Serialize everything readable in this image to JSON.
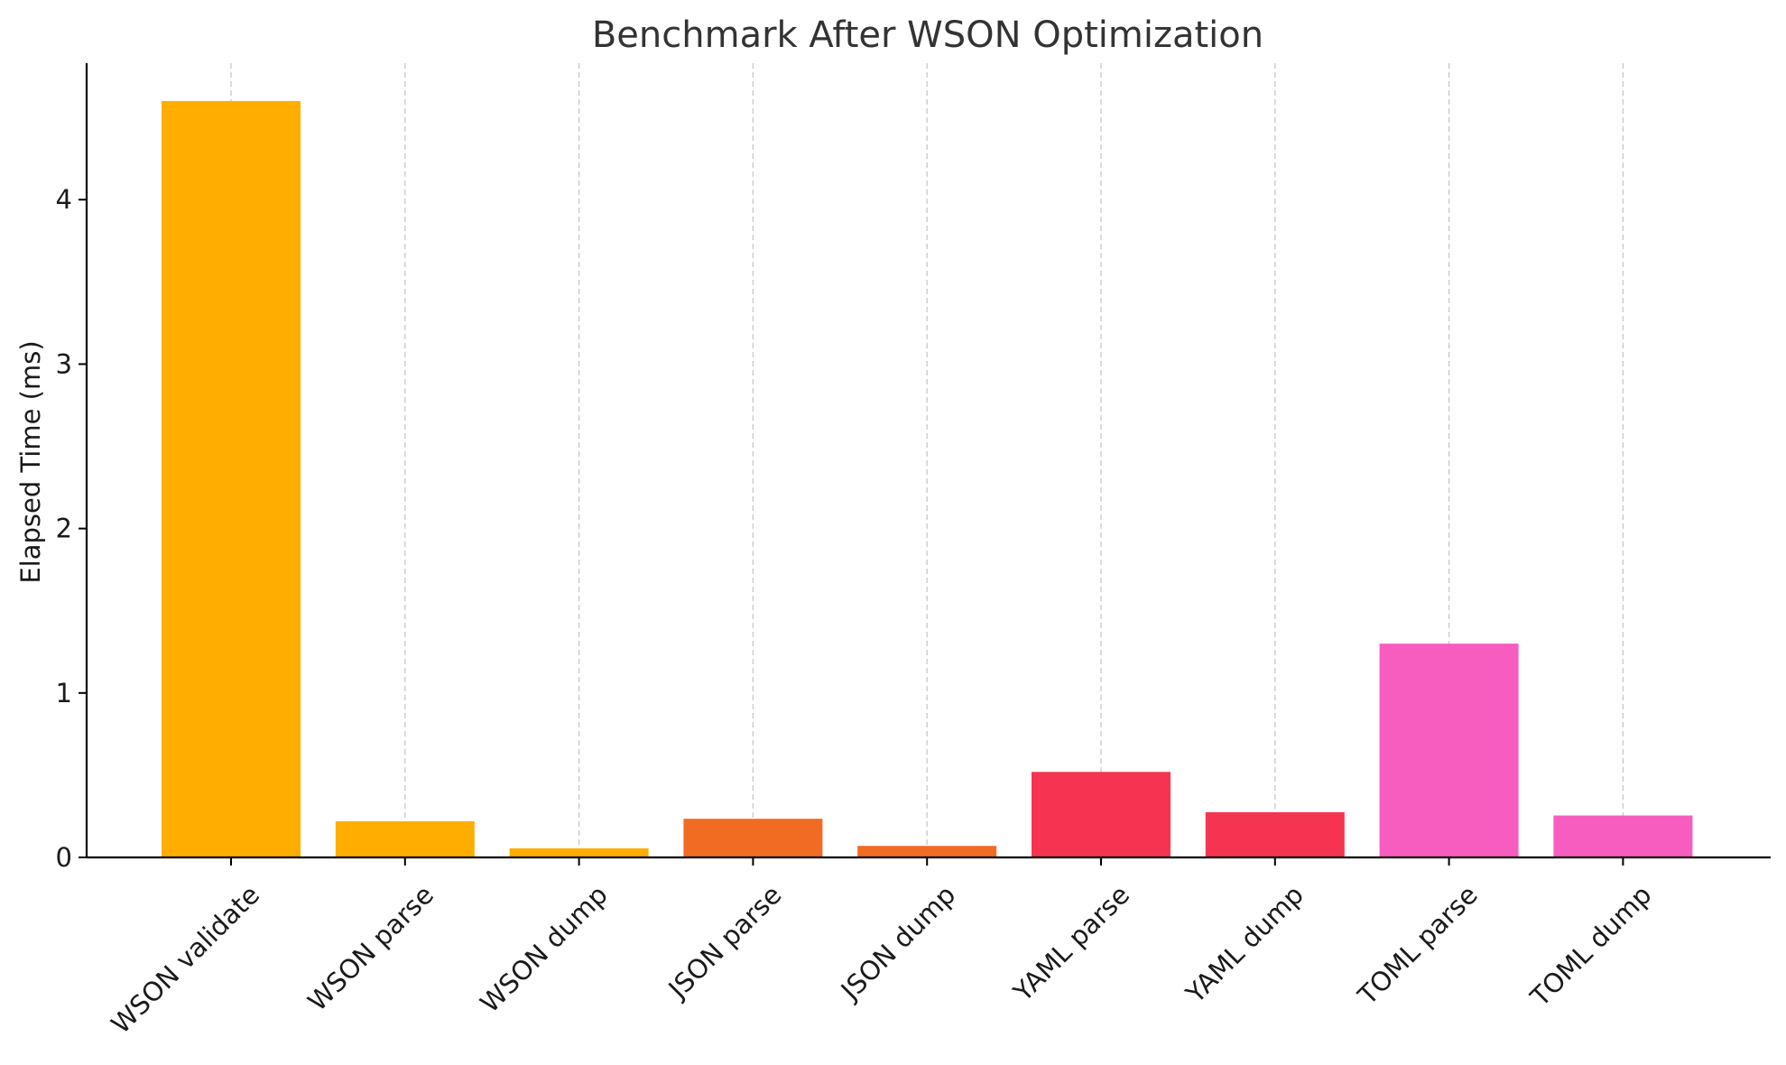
{
  "chart_data": {
    "type": "bar",
    "title": "Benchmark After WSON Optimization",
    "xlabel": "",
    "ylabel": "Elapsed Time (ms)",
    "ylim": [
      0,
      4.83
    ],
    "yticks": [
      0,
      1,
      2,
      3,
      4
    ],
    "grid": "vertical dashed at categories",
    "categories": [
      "WSON validate",
      "WSON parse",
      "WSON dump",
      "JSON parse",
      "JSON dump",
      "YAML parse",
      "YAML dump",
      "TOML parse",
      "TOML dump"
    ],
    "values": [
      4.6,
      0.22,
      0.055,
      0.235,
      0.07,
      0.52,
      0.275,
      1.3,
      0.255
    ],
    "colors": [
      "#FFAE00",
      "#FFAE00",
      "#FFAE00",
      "#F26B22",
      "#F26B22",
      "#F53452",
      "#F53452",
      "#F75CBF",
      "#F75CBF"
    ]
  }
}
